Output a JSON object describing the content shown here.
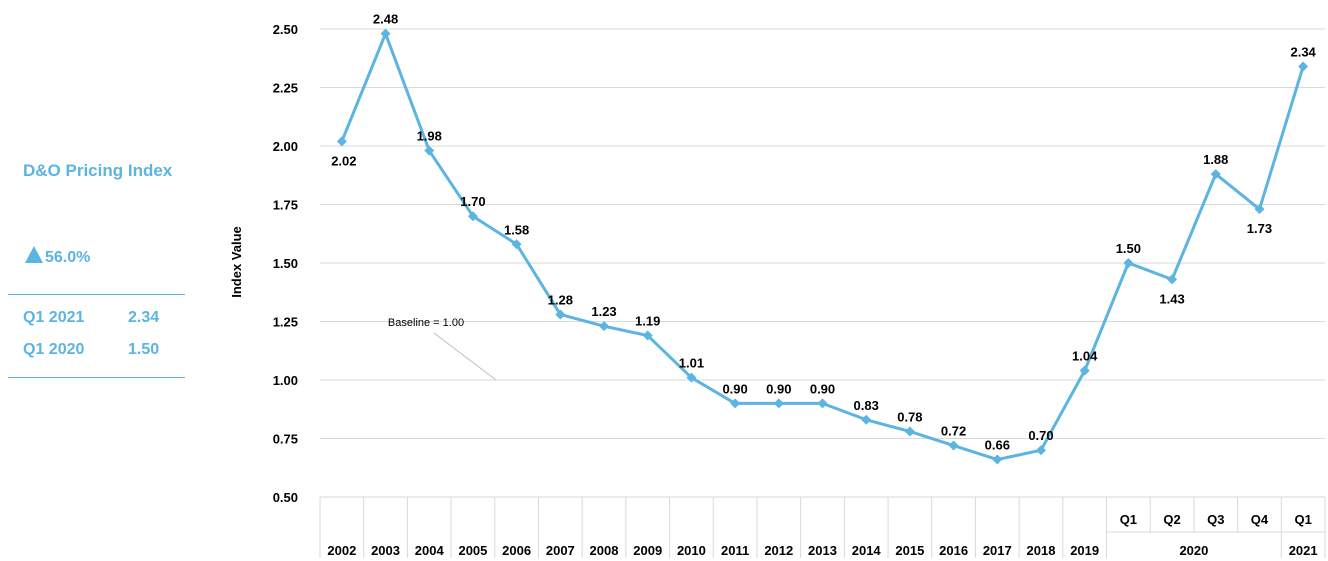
{
  "sidebar": {
    "title": "D&O Pricing Index",
    "change": "56.0%",
    "rows": [
      {
        "label": "Q1 2021",
        "value": "2.34"
      },
      {
        "label": "Q1 2020",
        "value": "1.50"
      }
    ]
  },
  "colors": {
    "accent": "#5bb4e1",
    "line": "#5bb4e1",
    "grid": "#d9d9d9"
  },
  "chart_data": {
    "type": "line",
    "ylabel": "Index Value",
    "ylim": [
      0.5,
      2.5
    ],
    "yticks": [
      "0.50",
      "0.75",
      "1.00",
      "1.25",
      "1.50",
      "1.75",
      "2.00",
      "2.25",
      "2.50"
    ],
    "categories": [
      "2002",
      "2003",
      "2004",
      "2005",
      "2006",
      "2007",
      "2008",
      "2009",
      "2010",
      "2011",
      "2012",
      "2013",
      "2014",
      "2015",
      "2016",
      "2017",
      "2018",
      "2019",
      "Q1",
      "Q2",
      "Q3",
      "Q4",
      "Q1"
    ],
    "category_groups": [
      {
        "label": "2020",
        "span": [
          "Q1",
          "Q2",
          "Q3",
          "Q4"
        ]
      },
      {
        "label": "2021",
        "span": [
          "Q1"
        ]
      }
    ],
    "series": [
      {
        "values": [
          2.02,
          2.48,
          1.98,
          1.7,
          1.58,
          1.28,
          1.23,
          1.19,
          1.01,
          0.9,
          0.9,
          0.9,
          0.83,
          0.78,
          0.72,
          0.66,
          0.7,
          1.04,
          1.5,
          1.43,
          1.88,
          1.73,
          2.34
        ]
      }
    ],
    "data_labels": [
      "2.02",
      "2.48",
      "1.98",
      "1.70",
      "1.58",
      "1.28",
      "1.23",
      "1.19",
      "1.01",
      "0.90",
      "0.90",
      "0.90",
      "0.83",
      "0.78",
      "0.72",
      "0.66",
      "0.70",
      "1.04",
      "1.50",
      "1.43",
      "1.88",
      "1.73",
      "2.34"
    ],
    "annotation": "Baseline = 1.00",
    "grid": true,
    "marker": "diamond"
  }
}
